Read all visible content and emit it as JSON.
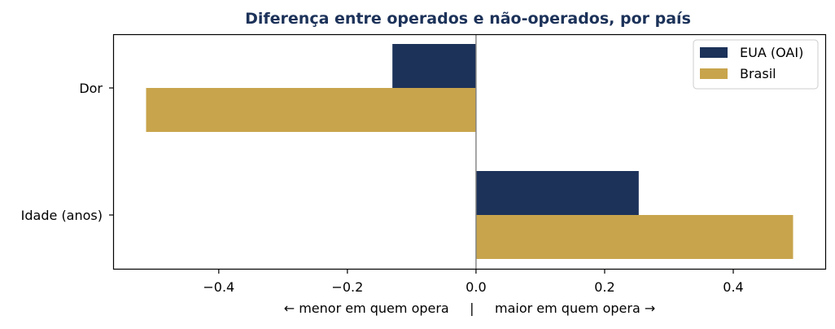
{
  "chart_data": {
    "type": "bar",
    "orientation": "horizontal",
    "title": "Diferença entre operados e não-operados, por país",
    "xlabel": "← menor em quem opera     |     maior em quem opera →",
    "ylabel": "",
    "categories": [
      "Dor",
      "Idade (anos)"
    ],
    "series": [
      {
        "name": "EUA (OAI)",
        "values": [
          -0.13,
          0.253
        ]
      },
      {
        "name": "Brasil",
        "values": [
          -0.513,
          0.493
        ]
      }
    ],
    "xlim": [
      -0.563,
      0.543
    ],
    "xticks": [
      -0.4,
      -0.2,
      0.0,
      0.2,
      0.4
    ],
    "xtick_labels": [
      "−0.4",
      "−0.2",
      "0.0",
      "0.2",
      "0.4"
    ],
    "zero_line": true,
    "grid": false,
    "legend_position": "top-right",
    "colors": {
      "EUA (OAI)": "#1c3259",
      "Brasil": "#c8a44c",
      "zero_line": "#808080",
      "title": "#1c3259"
    }
  }
}
